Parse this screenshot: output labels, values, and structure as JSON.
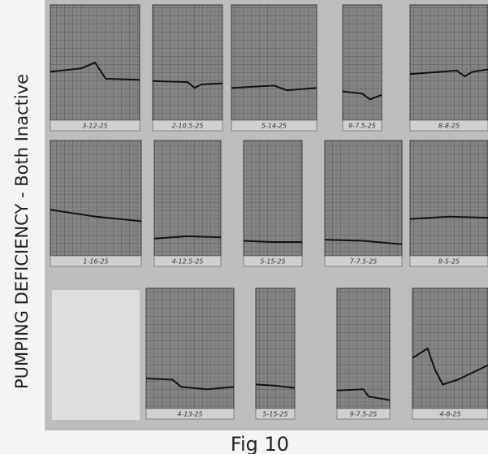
{
  "title": "PUMPING DEFICIENCY - Both Inactive",
  "caption": "Fig 10",
  "panels": [
    {
      "label": "3-12-25"
    },
    {
      "label": "2-10.5-25"
    },
    {
      "label": "5-14-25"
    },
    {
      "label": "9-7.5-25"
    },
    {
      "label": "8-8-25"
    },
    {
      "label": "1-16-25"
    },
    {
      "label": "4-12.5-25"
    },
    {
      "label": "5-15-25"
    },
    {
      "label": "7-7.5-25"
    },
    {
      "label": "8-5-25"
    },
    {
      "label": "4-13-25"
    },
    {
      "label": "5-15-25"
    },
    {
      "label": "9-7.5-25"
    },
    {
      "label": "4-8-25"
    }
  ]
}
